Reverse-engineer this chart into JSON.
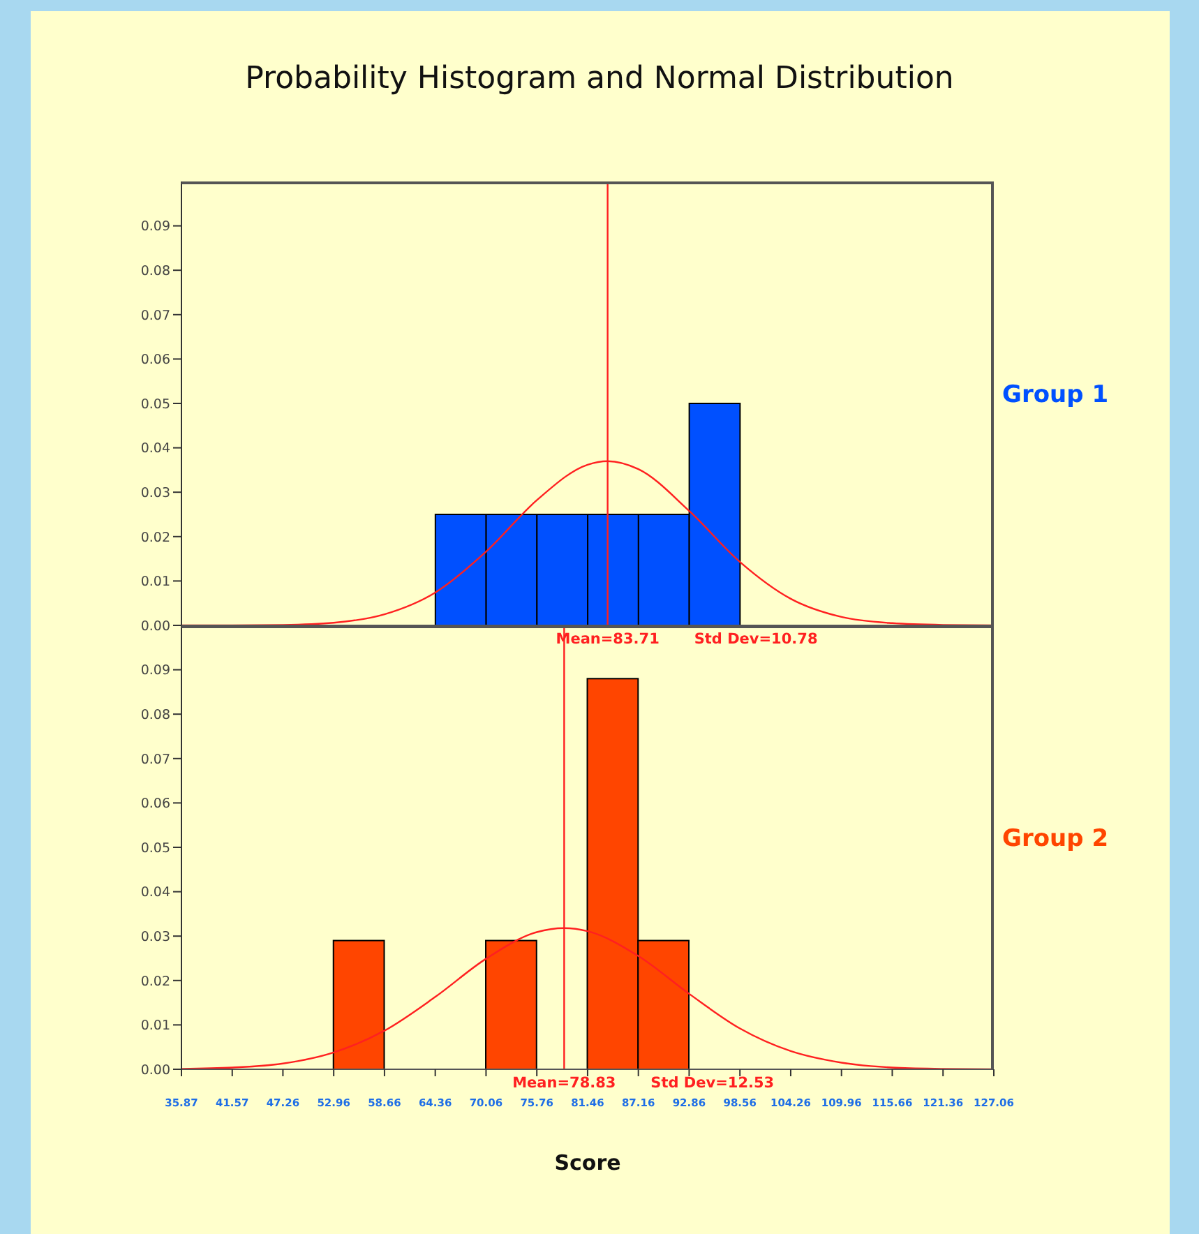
{
  "chart_data": [
    {
      "type": "histogram",
      "title": "Probability Histogram and Normal Distribution",
      "tick_labels": "y",
      "bins": [
        35.87,
        41.57,
        47.26,
        52.96,
        58.66,
        64.36,
        70.06,
        75.76,
        81.46,
        87.16,
        92.86,
        98.56,
        104.26,
        109.96,
        115.66,
        121.36,
        127.06
      ],
      "series": [
        {
          "name": "Group 1",
          "color": "#0050ff",
          "values": [
            0,
            0,
            0,
            0,
            0,
            0.025,
            0.025,
            0.025,
            0.025,
            0.025,
            0.05,
            0,
            0,
            0,
            0,
            0
          ]
        },
        {
          "type": "line",
          "color": "#ff2020",
          "x": [
            35.87,
            41.57,
            47.26,
            52.96,
            58.66,
            64.36,
            70.06,
            75.76,
            81.46,
            83.71,
            87.16,
            92.86,
            98.56,
            104.26,
            109.96,
            115.66,
            121.36,
            127.06
          ],
          "values": [
            0,
            0,
            0.0001,
            0.0006,
            0.0025,
            0.0074,
            0.0166,
            0.0282,
            0.0362,
            0.037,
            0.0352,
            0.0258,
            0.0143,
            0.006,
            0.0019,
            0.0005,
            0.0001,
            0
          ]
        }
      ],
      "xlim": [
        35.87,
        127.06
      ],
      "ylim": [
        0,
        0.1
      ],
      "xticks": [
        35.87,
        41.57,
        47.26,
        52.96,
        58.66,
        64.36,
        70.06,
        75.76,
        81.46,
        87.16,
        92.86,
        98.56,
        104.26,
        109.96,
        115.66,
        121.36,
        127.06
      ],
      "yticks": [
        {
          "value": 0,
          "label": "0.00"
        },
        {
          "value": 0.01,
          "label": "0.01"
        },
        {
          "value": 0.02,
          "label": "0.02"
        },
        {
          "value": 0.03,
          "label": "0.03"
        },
        {
          "value": 0.04,
          "label": "0.04"
        },
        {
          "value": 0.05,
          "label": "0.05"
        },
        {
          "value": 0.06,
          "label": "0.06"
        },
        {
          "value": 0.07,
          "label": "0.07"
        },
        {
          "value": 0.08,
          "label": "0.08"
        },
        {
          "value": 0.09,
          "label": "0.09"
        }
      ],
      "ref_lines": [
        {
          "axis": "x",
          "value": 83.71,
          "label": "Mean=83.71",
          "color": "#ff2020"
        }
      ],
      "annotations": [
        "Std Dev=10.78"
      ]
    },
    {
      "type": "histogram",
      "xlabel": "Score",
      "bins": [
        35.87,
        41.57,
        47.26,
        52.96,
        58.66,
        64.36,
        70.06,
        75.76,
        81.46,
        87.16,
        92.86,
        98.56,
        104.26,
        109.96,
        115.66,
        121.36,
        127.06
      ],
      "series": [
        {
          "name": "Group 2",
          "color": "#ff4500",
          "values": [
            0,
            0,
            0,
            0.029,
            0,
            0,
            0.029,
            0,
            0.088,
            0.029,
            0,
            0,
            0,
            0,
            0,
            0
          ]
        },
        {
          "type": "line",
          "color": "#ff2020",
          "x": [
            35.87,
            41.57,
            47.26,
            52.96,
            58.66,
            64.36,
            70.06,
            75.76,
            78.83,
            81.46,
            87.16,
            92.86,
            98.56,
            104.26,
            109.96,
            115.66,
            121.36,
            127.06
          ],
          "values": [
            0.0001,
            0.0004,
            0.0013,
            0.0038,
            0.0087,
            0.0163,
            0.0249,
            0.0309,
            0.0318,
            0.0311,
            0.0255,
            0.017,
            0.0092,
            0.0041,
            0.0015,
            0.0004,
            0.0001,
            0
          ]
        }
      ],
      "xlim": [
        35.87,
        127.06
      ],
      "ylim": [
        0,
        0.1
      ],
      "xticks": [
        35.87,
        41.57,
        47.26,
        52.96,
        58.66,
        64.36,
        70.06,
        75.76,
        81.46,
        87.16,
        92.86,
        98.56,
        104.26,
        109.96,
        115.66,
        121.36,
        127.06
      ],
      "yticks": [
        {
          "value": 0,
          "label": "0.00"
        },
        {
          "value": 0.01,
          "label": "0.01"
        },
        {
          "value": 0.02,
          "label": "0.02"
        },
        {
          "value": 0.03,
          "label": "0.03"
        },
        {
          "value": 0.04,
          "label": "0.04"
        },
        {
          "value": 0.05,
          "label": "0.05"
        },
        {
          "value": 0.06,
          "label": "0.06"
        },
        {
          "value": 0.07,
          "label": "0.07"
        },
        {
          "value": 0.08,
          "label": "0.08"
        },
        {
          "value": 0.09,
          "label": "0.09"
        }
      ],
      "ref_lines": [
        {
          "axis": "x",
          "value": 78.83,
          "label": "Mean=78.83",
          "color": "#ff2020"
        }
      ],
      "annotations": [
        "Std Dev=12.53"
      ]
    }
  ]
}
